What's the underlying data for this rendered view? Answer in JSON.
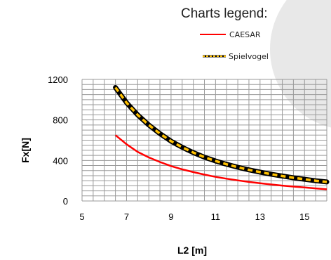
{
  "legend": {
    "title": "Charts legend:",
    "items": [
      {
        "name": "CAESAR",
        "color": "#ff0000",
        "style": "solid"
      },
      {
        "name": "Spielvogel",
        "color": "#000000",
        "dash_color": "#ffc000",
        "style": "dashed-on-black"
      }
    ]
  },
  "chart_data": {
    "type": "line",
    "xlabel": "L2 [m]",
    "ylabel": "Fx[N]",
    "xlim": [
      5,
      16
    ],
    "ylim": [
      0,
      1200
    ],
    "x_ticks": [
      "5",
      "7",
      "9",
      "11",
      "13",
      "15"
    ],
    "y_ticks": [
      "0",
      "400",
      "800",
      "1200"
    ],
    "grid": true,
    "legend_position": "top-right",
    "series": [
      {
        "name": "CAESAR",
        "color": "#ff0000",
        "x": [
          6.5,
          7,
          7.5,
          8,
          8.5,
          9,
          9.5,
          10,
          10.5,
          11,
          11.5,
          12,
          12.5,
          13,
          13.5,
          14,
          14.5,
          15,
          15.5,
          16
        ],
        "values": [
          650,
          560,
          485,
          430,
          385,
          345,
          312,
          285,
          260,
          238,
          220,
          203,
          188,
          175,
          163,
          152,
          142,
          133,
          124,
          115
        ]
      },
      {
        "name": "Spielvogel",
        "color": "#000000",
        "x": [
          6.5,
          7,
          7.5,
          8,
          8.5,
          9,
          9.5,
          10,
          10.5,
          11,
          11.5,
          12,
          12.5,
          13,
          13.5,
          14,
          14.5,
          15,
          15.5,
          16
        ],
        "values": [
          1120,
          970,
          850,
          750,
          665,
          590,
          530,
          478,
          432,
          395,
          362,
          333,
          307,
          285,
          264,
          246,
          229,
          214,
          200,
          188
        ]
      }
    ]
  }
}
